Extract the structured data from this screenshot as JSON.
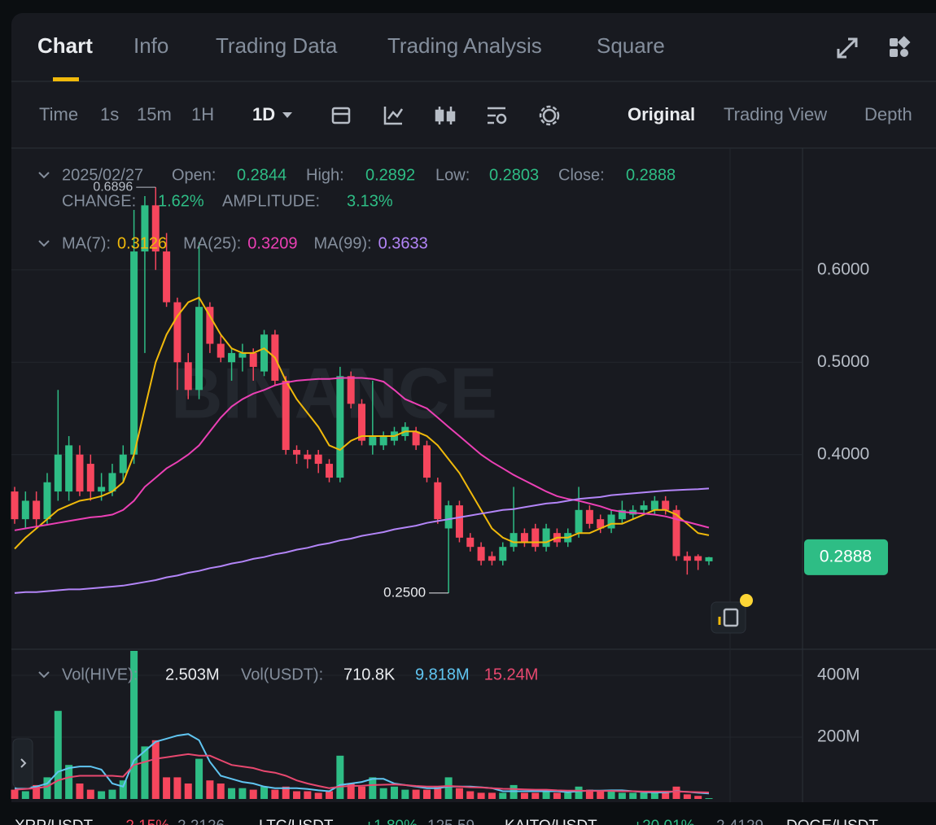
{
  "tabs": [
    "Chart",
    "Info",
    "Trading Data",
    "Trading Analysis",
    "Square"
  ],
  "toolbar": {
    "items": [
      "Time",
      "1s",
      "15m",
      "1H"
    ],
    "selected": "1D",
    "views": [
      "Original",
      "Trading View",
      "Depth"
    ]
  },
  "info": {
    "date": "2025/02/27",
    "fields": [
      {
        "label": "Open:",
        "value": "0.2844"
      },
      {
        "label": "High:",
        "value": "0.2892"
      },
      {
        "label": "Low:",
        "value": "0.2803"
      },
      {
        "label": "Close:",
        "value": "0.2888"
      }
    ],
    "row2": [
      {
        "label": "CHANGE:",
        "value": "1.62%"
      },
      {
        "label": "AMPLITUDE:",
        "value": "3.13%"
      }
    ]
  },
  "watermark": "BINANCE",
  "chart_data": {
    "type": "candlestick",
    "open": [
      0.36,
      0.33,
      0.35,
      0.33,
      0.36,
      0.36,
      0.4,
      0.39,
      0.36,
      0.36,
      0.38,
      0.4,
      0.62,
      0.67,
      0.62,
      0.565,
      0.5,
      0.47,
      0.56,
      0.52,
      0.5,
      0.505,
      0.51,
      0.49,
      0.53,
      0.48,
      0.405,
      0.4,
      0.4,
      0.39,
      0.375,
      0.485,
      0.455,
      0.41,
      0.41,
      0.415,
      0.42,
      0.425,
      0.41,
      0.37,
      0.32,
      0.345,
      0.31,
      0.3,
      0.29,
      0.285,
      0.3,
      0.315,
      0.32,
      0.3,
      0.315,
      0.305,
      0.315,
      0.34,
      0.33,
      0.32,
      0.33,
      0.335,
      0.34,
      0.34,
      0.35,
      0.34,
      0.29,
      0.29,
      0.2844
    ],
    "high": [
      0.365,
      0.36,
      0.36,
      0.38,
      0.47,
      0.42,
      0.41,
      0.4,
      0.38,
      0.39,
      0.41,
      0.665,
      0.68,
      0.6896,
      0.64,
      0.57,
      0.51,
      0.63,
      0.565,
      0.53,
      0.515,
      0.52,
      0.515,
      0.535,
      0.535,
      0.485,
      0.41,
      0.405,
      0.405,
      0.395,
      0.495,
      0.49,
      0.46,
      0.48,
      0.425,
      0.43,
      0.435,
      0.43,
      0.415,
      0.375,
      0.35,
      0.35,
      0.315,
      0.305,
      0.295,
      0.305,
      0.365,
      0.32,
      0.325,
      0.325,
      0.32,
      0.32,
      0.365,
      0.345,
      0.335,
      0.34,
      0.35,
      0.345,
      0.35,
      0.355,
      0.355,
      0.345,
      0.295,
      0.292,
      0.2892
    ],
    "low": [
      0.325,
      0.32,
      0.32,
      0.325,
      0.35,
      0.35,
      0.355,
      0.35,
      0.35,
      0.355,
      0.37,
      0.39,
      0.51,
      0.6,
      0.56,
      0.47,
      0.46,
      0.46,
      0.51,
      0.5,
      0.48,
      0.49,
      0.48,
      0.485,
      0.475,
      0.4,
      0.39,
      0.385,
      0.38,
      0.37,
      0.37,
      0.45,
      0.41,
      0.4,
      0.405,
      0.41,
      0.415,
      0.405,
      0.37,
      0.325,
      0.25,
      0.305,
      0.295,
      0.28,
      0.28,
      0.28,
      0.295,
      0.3,
      0.295,
      0.295,
      0.3,
      0.3,
      0.31,
      0.32,
      0.315,
      0.315,
      0.325,
      0.33,
      0.335,
      0.335,
      0.335,
      0.285,
      0.27,
      0.275,
      0.2803
    ],
    "close": [
      0.33,
      0.35,
      0.33,
      0.37,
      0.4,
      0.41,
      0.36,
      0.36,
      0.365,
      0.38,
      0.4,
      0.62,
      0.67,
      0.62,
      0.565,
      0.5,
      0.47,
      0.56,
      0.52,
      0.505,
      0.51,
      0.51,
      0.495,
      0.53,
      0.48,
      0.405,
      0.4,
      0.395,
      0.39,
      0.375,
      0.485,
      0.455,
      0.415,
      0.42,
      0.42,
      0.425,
      0.43,
      0.41,
      0.375,
      0.33,
      0.345,
      0.31,
      0.3,
      0.285,
      0.285,
      0.3,
      0.315,
      0.305,
      0.3,
      0.32,
      0.305,
      0.315,
      0.34,
      0.325,
      0.32,
      0.335,
      0.34,
      0.34,
      0.345,
      0.35,
      0.34,
      0.29,
      0.285,
      0.285,
      0.2888
    ],
    "high_label": "0.6896",
    "low_label": "0.2500",
    "up_color": "#2ebd85",
    "down_color": "#f6465d",
    "ylim": [
      0.19,
      0.732
    ],
    "yticks": [
      {
        "value": 0.6,
        "label": "0.6000"
      },
      {
        "value": 0.5,
        "label": "0.5000"
      },
      {
        "value": 0.4,
        "label": "0.4000"
      }
    ],
    "ma": [
      {
        "name": "MA(7):",
        "value_label": "0.3126",
        "color": "#f0b90b",
        "values": [
          0.298,
          0.31,
          0.32,
          0.33,
          0.34,
          0.345,
          0.35,
          0.352,
          0.355,
          0.36,
          0.37,
          0.4,
          0.45,
          0.5,
          0.53,
          0.55,
          0.565,
          0.57,
          0.55,
          0.53,
          0.515,
          0.51,
          0.51,
          0.515,
          0.505,
          0.48,
          0.46,
          0.445,
          0.43,
          0.41,
          0.405,
          0.415,
          0.42,
          0.42,
          0.42,
          0.42,
          0.425,
          0.425,
          0.42,
          0.41,
          0.395,
          0.38,
          0.36,
          0.34,
          0.32,
          0.31,
          0.305,
          0.305,
          0.305,
          0.305,
          0.31,
          0.31,
          0.315,
          0.315,
          0.32,
          0.325,
          0.325,
          0.33,
          0.335,
          0.34,
          0.34,
          0.335,
          0.325,
          0.315,
          0.3126
        ]
      },
      {
        "name": "MA(25):",
        "value_label": "0.3209",
        "color": "#eb40b5",
        "values": [
          0.318,
          0.32,
          0.322,
          0.324,
          0.326,
          0.328,
          0.33,
          0.332,
          0.333,
          0.335,
          0.34,
          0.35,
          0.365,
          0.375,
          0.385,
          0.392,
          0.4,
          0.41,
          0.425,
          0.44,
          0.452,
          0.46,
          0.466,
          0.47,
          0.475,
          0.478,
          0.48,
          0.481,
          0.482,
          0.482,
          0.483,
          0.483,
          0.483,
          0.482,
          0.479,
          0.47,
          0.46,
          0.455,
          0.45,
          0.44,
          0.43,
          0.42,
          0.41,
          0.4,
          0.392,
          0.385,
          0.378,
          0.372,
          0.366,
          0.36,
          0.355,
          0.352,
          0.35,
          0.347,
          0.344,
          0.34,
          0.338,
          0.337,
          0.336,
          0.335,
          0.333,
          0.33,
          0.327,
          0.324,
          0.3209
        ]
      },
      {
        "name": "MA(99):",
        "value_label": "0.3633",
        "color": "#b385f8",
        "values": [
          0.25,
          0.251,
          0.251,
          0.252,
          0.253,
          0.254,
          0.254,
          0.255,
          0.256,
          0.257,
          0.258,
          0.26,
          0.262,
          0.264,
          0.267,
          0.269,
          0.272,
          0.274,
          0.277,
          0.279,
          0.282,
          0.284,
          0.287,
          0.289,
          0.292,
          0.294,
          0.297,
          0.299,
          0.302,
          0.304,
          0.307,
          0.309,
          0.312,
          0.314,
          0.316,
          0.319,
          0.321,
          0.323,
          0.326,
          0.328,
          0.33,
          0.332,
          0.334,
          0.336,
          0.338,
          0.34,
          0.341,
          0.343,
          0.345,
          0.347,
          0.348,
          0.35,
          0.352,
          0.353,
          0.354,
          0.356,
          0.357,
          0.358,
          0.359,
          0.36,
          0.361,
          0.3615,
          0.362,
          0.3625,
          0.3633
        ]
      }
    ],
    "volume": {
      "ylim": [
        0,
        479
      ],
      "yticks": [
        {
          "value": 400,
          "label": "400M"
        },
        {
          "value": 200,
          "label": "200M"
        }
      ],
      "legend": [
        {
          "label": "Vol(HIVE):",
          "value": "2.503M"
        },
        {
          "label": "Vol(USDT):",
          "value": "710.8K"
        }
      ],
      "values": [
        30,
        25,
        45,
        70,
        285,
        110,
        50,
        30,
        25,
        30,
        60,
        480,
        170,
        190,
        70,
        70,
        50,
        130,
        60,
        50,
        35,
        35,
        30,
        40,
        30,
        40,
        25,
        25,
        20,
        25,
        140,
        50,
        40,
        70,
        35,
        40,
        30,
        30,
        30,
        40,
        70,
        35,
        25,
        20,
        20,
        20,
        45,
        20,
        20,
        25,
        20,
        20,
        40,
        30,
        25,
        25,
        20,
        20,
        20,
        20,
        25,
        40,
        15,
        10,
        2.503
      ],
      "ma": [
        {
          "name": "9.818M",
          "color": "#60c5f1",
          "values": [
            35,
            35,
            40,
            50,
            88,
            100,
            105,
            105,
            95,
            50,
            40,
            125,
            155,
            185,
            195,
            205,
            210,
            190,
            120,
            75,
            65,
            55,
            50,
            40,
            35,
            35,
            35,
            32,
            28,
            25,
            45,
            50,
            55,
            65,
            65,
            50,
            45,
            40,
            35,
            35,
            40,
            40,
            40,
            38,
            35,
            25,
            25,
            25,
            25,
            25,
            25,
            22,
            25,
            27,
            27,
            28,
            28,
            25,
            22,
            21,
            21,
            25,
            23,
            20,
            18
          ]
        },
        {
          "name": "15.24M",
          "color": "#e8486f",
          "values": [
            30,
            32,
            35,
            40,
            60,
            70,
            75,
            75,
            75,
            75,
            72,
            110,
            120,
            130,
            135,
            140,
            145,
            140,
            140,
            125,
            110,
            105,
            100,
            90,
            85,
            75,
            60,
            50,
            42,
            35,
            40,
            42,
            43,
            45,
            46,
            47,
            45,
            42,
            40,
            40,
            42,
            40,
            38,
            37,
            35,
            33,
            32,
            31,
            30,
            30,
            28,
            27,
            27,
            26,
            26,
            26,
            25,
            25,
            24,
            24,
            24,
            24,
            23,
            22,
            21
          ]
        }
      ]
    }
  },
  "ticker": [
    {
      "pair": "XRP/USDT",
      "change": "-2.15%",
      "price": "2.2126"
    },
    {
      "pair": "LTC/USDT",
      "change": "+1.80%",
      "price": "125.59"
    },
    {
      "pair": "KAITO/USDT",
      "change": "+20.01%",
      "price": "2.4129"
    },
    {
      "pair": "DOGE/USDT"
    }
  ]
}
